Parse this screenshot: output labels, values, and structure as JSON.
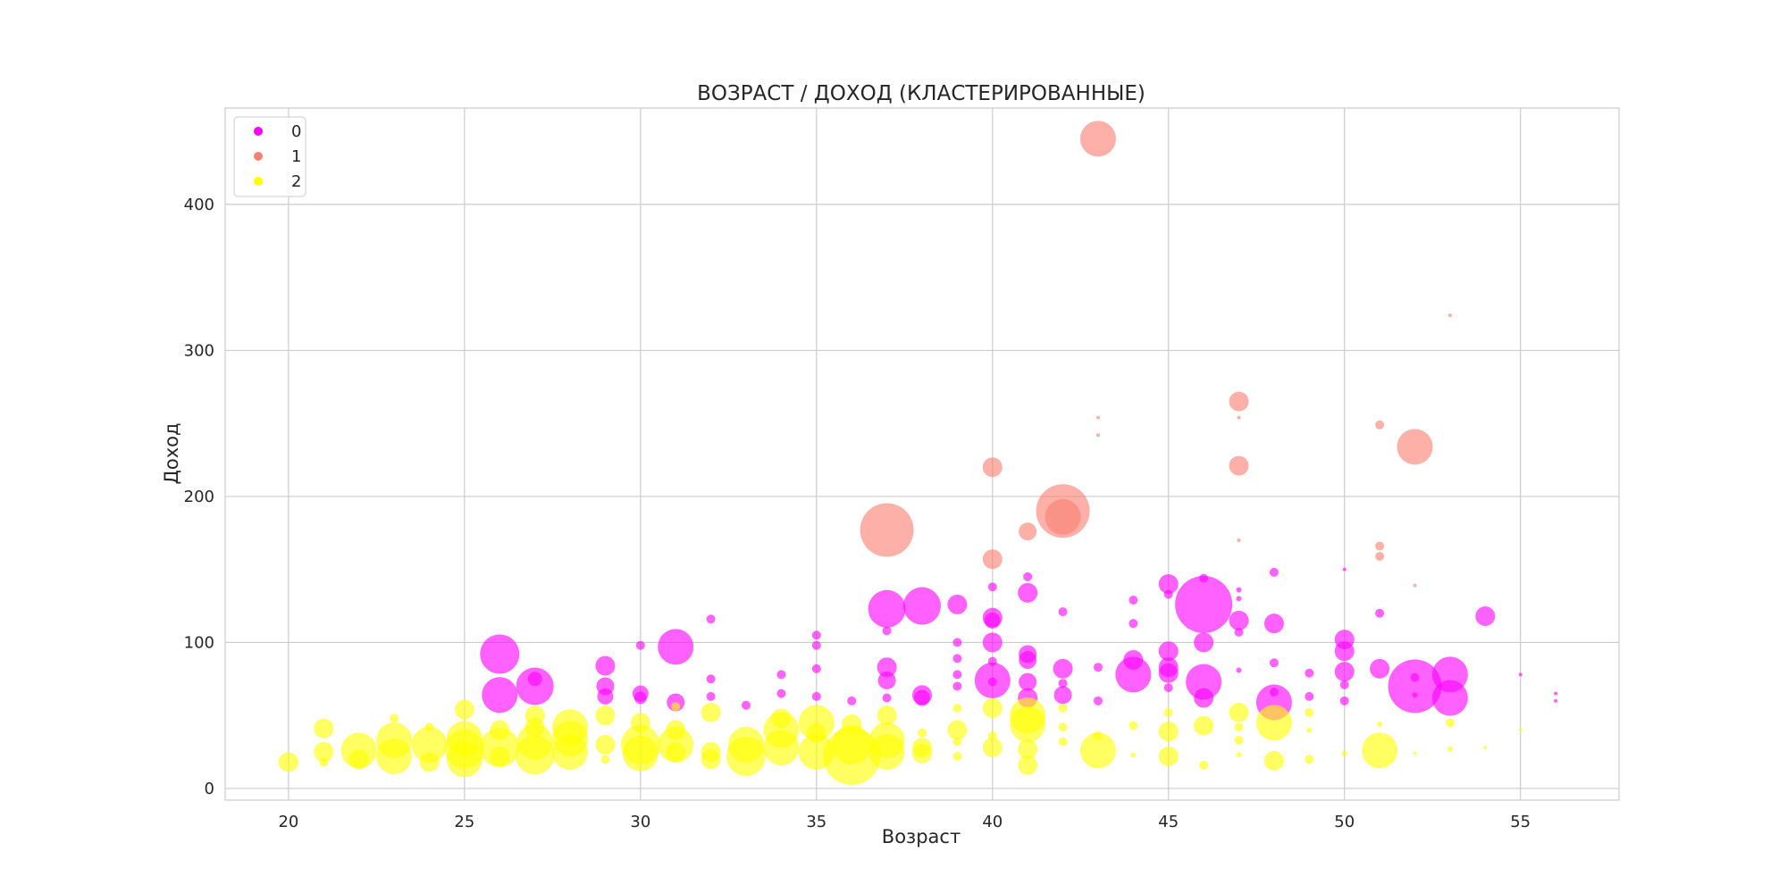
{
  "chart_data": {
    "type": "scatter",
    "title": "ВОЗРАСТ / ДОХОД (КЛАСТЕРИРОВАННЫЕ)",
    "xlabel": "Возраст",
    "ylabel": "Доход",
    "xlim": [
      18.2,
      57.8
    ],
    "ylim": [
      -8,
      466
    ],
    "xticks": [
      20,
      25,
      30,
      35,
      40,
      45,
      50,
      55
    ],
    "yticks": [
      0,
      100,
      200,
      300,
      400
    ],
    "grid": true,
    "legend_position": "top-left",
    "size_legend_note": "",
    "series": [
      {
        "name": "0",
        "color": "#ff00ff",
        "points": [
          {
            "x": 26,
            "y": 92,
            "s": 22
          },
          {
            "x": 26,
            "y": 64,
            "s": 20
          },
          {
            "x": 27,
            "y": 70,
            "s": 21
          },
          {
            "x": 27,
            "y": 75,
            "s": 8
          },
          {
            "x": 29,
            "y": 84,
            "s": 11
          },
          {
            "x": 29,
            "y": 70,
            "s": 10
          },
          {
            "x": 29,
            "y": 63,
            "s": 9
          },
          {
            "x": 30,
            "y": 98,
            "s": 5
          },
          {
            "x": 30,
            "y": 65,
            "s": 9
          },
          {
            "x": 30,
            "y": 62,
            "s": 7
          },
          {
            "x": 31,
            "y": 97,
            "s": 20
          },
          {
            "x": 31,
            "y": 59,
            "s": 10
          },
          {
            "x": 32,
            "y": 116,
            "s": 5
          },
          {
            "x": 32,
            "y": 75,
            "s": 5
          },
          {
            "x": 32,
            "y": 63,
            "s": 5
          },
          {
            "x": 33,
            "y": 57,
            "s": 5
          },
          {
            "x": 34,
            "y": 78,
            "s": 5
          },
          {
            "x": 34,
            "y": 65,
            "s": 5
          },
          {
            "x": 35,
            "y": 105,
            "s": 5
          },
          {
            "x": 35,
            "y": 98,
            "s": 5
          },
          {
            "x": 35,
            "y": 82,
            "s": 5
          },
          {
            "x": 35,
            "y": 63,
            "s": 5
          },
          {
            "x": 36,
            "y": 60,
            "s": 5
          },
          {
            "x": 37,
            "y": 123,
            "s": 21
          },
          {
            "x": 37,
            "y": 108,
            "s": 5
          },
          {
            "x": 37,
            "y": 83,
            "s": 11
          },
          {
            "x": 37,
            "y": 74,
            "s": 10
          },
          {
            "x": 37,
            "y": 62,
            "s": 5
          },
          {
            "x": 38,
            "y": 125,
            "s": 21
          },
          {
            "x": 38,
            "y": 64,
            "s": 11
          },
          {
            "x": 38,
            "y": 62,
            "s": 9
          },
          {
            "x": 39,
            "y": 126,
            "s": 11
          },
          {
            "x": 39,
            "y": 100,
            "s": 5
          },
          {
            "x": 39,
            "y": 89,
            "s": 5
          },
          {
            "x": 39,
            "y": 78,
            "s": 5
          },
          {
            "x": 39,
            "y": 70,
            "s": 5
          },
          {
            "x": 40,
            "y": 138,
            "s": 5
          },
          {
            "x": 40,
            "y": 117,
            "s": 11
          },
          {
            "x": 40,
            "y": 115,
            "s": 9
          },
          {
            "x": 40,
            "y": 100,
            "s": 11
          },
          {
            "x": 40,
            "y": 87,
            "s": 5
          },
          {
            "x": 40,
            "y": 74,
            "s": 20
          },
          {
            "x": 40,
            "y": 73,
            "s": 5
          },
          {
            "x": 41,
            "y": 145,
            "s": 5
          },
          {
            "x": 41,
            "y": 134,
            "s": 11
          },
          {
            "x": 41,
            "y": 92,
            "s": 10
          },
          {
            "x": 41,
            "y": 88,
            "s": 10
          },
          {
            "x": 41,
            "y": 73,
            "s": 10
          },
          {
            "x": 41,
            "y": 62,
            "s": 11
          },
          {
            "x": 42,
            "y": 121,
            "s": 5
          },
          {
            "x": 42,
            "y": 82,
            "s": 11
          },
          {
            "x": 42,
            "y": 72,
            "s": 5
          },
          {
            "x": 42,
            "y": 64,
            "s": 10
          },
          {
            "x": 43,
            "y": 83,
            "s": 5
          },
          {
            "x": 43,
            "y": 60,
            "s": 5
          },
          {
            "x": 44,
            "y": 129,
            "s": 5
          },
          {
            "x": 44,
            "y": 113,
            "s": 5
          },
          {
            "x": 44,
            "y": 88,
            "s": 11
          },
          {
            "x": 44,
            "y": 78,
            "s": 20
          },
          {
            "x": 45,
            "y": 140,
            "s": 11
          },
          {
            "x": 45,
            "y": 133,
            "s": 5
          },
          {
            "x": 45,
            "y": 94,
            "s": 11
          },
          {
            "x": 45,
            "y": 83,
            "s": 11
          },
          {
            "x": 45,
            "y": 79,
            "s": 11
          },
          {
            "x": 45,
            "y": 69,
            "s": 5
          },
          {
            "x": 46,
            "y": 144,
            "s": 5
          },
          {
            "x": 46,
            "y": 126,
            "s": 32
          },
          {
            "x": 46,
            "y": 100,
            "s": 11
          },
          {
            "x": 46,
            "y": 73,
            "s": 20
          },
          {
            "x": 46,
            "y": 62,
            "s": 11
          },
          {
            "x": 47,
            "y": 136,
            "s": 3
          },
          {
            "x": 47,
            "y": 130,
            "s": 3
          },
          {
            "x": 47,
            "y": 115,
            "s": 11
          },
          {
            "x": 47,
            "y": 107,
            "s": 5
          },
          {
            "x": 47,
            "y": 81,
            "s": 3
          },
          {
            "x": 48,
            "y": 148,
            "s": 5
          },
          {
            "x": 48,
            "y": 113,
            "s": 11
          },
          {
            "x": 48,
            "y": 86,
            "s": 5
          },
          {
            "x": 48,
            "y": 66,
            "s": 5
          },
          {
            "x": 48,
            "y": 59,
            "s": 20
          },
          {
            "x": 49,
            "y": 79,
            "s": 5
          },
          {
            "x": 49,
            "y": 63,
            "s": 5
          },
          {
            "x": 50,
            "y": 150,
            "s": 2
          },
          {
            "x": 50,
            "y": 102,
            "s": 11
          },
          {
            "x": 50,
            "y": 94,
            "s": 11
          },
          {
            "x": 50,
            "y": 80,
            "s": 11
          },
          {
            "x": 50,
            "y": 71,
            "s": 5
          },
          {
            "x": 50,
            "y": 60,
            "s": 5
          },
          {
            "x": 51,
            "y": 120,
            "s": 5
          },
          {
            "x": 51,
            "y": 82,
            "s": 11
          },
          {
            "x": 52,
            "y": 70,
            "s": 30
          },
          {
            "x": 52,
            "y": 76,
            "s": 5
          },
          {
            "x": 52,
            "y": 64,
            "s": 3
          },
          {
            "x": 53,
            "y": 78,
            "s": 20
          },
          {
            "x": 53,
            "y": 62,
            "s": 20
          },
          {
            "x": 54,
            "y": 118,
            "s": 11
          },
          {
            "x": 55,
            "y": 78,
            "s": 2
          },
          {
            "x": 56,
            "y": 65,
            "s": 2
          },
          {
            "x": 56,
            "y": 60,
            "s": 2
          }
        ]
      },
      {
        "name": "1",
        "color": "#fa8072",
        "points": [
          {
            "x": 37,
            "y": 177,
            "s": 30
          },
          {
            "x": 40,
            "y": 220,
            "s": 11
          },
          {
            "x": 40,
            "y": 157,
            "s": 11
          },
          {
            "x": 41,
            "y": 176,
            "s": 10
          },
          {
            "x": 42,
            "y": 190,
            "s": 30
          },
          {
            "x": 42,
            "y": 186,
            "s": 20
          },
          {
            "x": 43,
            "y": 445,
            "s": 20
          },
          {
            "x": 43,
            "y": 254,
            "s": 2
          },
          {
            "x": 43,
            "y": 242,
            "s": 2
          },
          {
            "x": 47,
            "y": 265,
            "s": 11
          },
          {
            "x": 47,
            "y": 221,
            "s": 11
          },
          {
            "x": 47,
            "y": 254,
            "s": 2
          },
          {
            "x": 47,
            "y": 170,
            "s": 2
          },
          {
            "x": 51,
            "y": 249,
            "s": 5
          },
          {
            "x": 51,
            "y": 166,
            "s": 5
          },
          {
            "x": 51,
            "y": 159,
            "s": 5
          },
          {
            "x": 52,
            "y": 234,
            "s": 20
          },
          {
            "x": 52,
            "y": 139,
            "s": 2
          },
          {
            "x": 53,
            "y": 324,
            "s": 2
          }
        ]
      },
      {
        "name": "2",
        "color": "#ffff00",
        "points": [
          {
            "x": 20,
            "y": 18,
            "s": 11
          },
          {
            "x": 21,
            "y": 41,
            "s": 11
          },
          {
            "x": 21,
            "y": 25,
            "s": 11
          },
          {
            "x": 21,
            "y": 18,
            "s": 5
          },
          {
            "x": 22,
            "y": 26,
            "s": 20
          },
          {
            "x": 22,
            "y": 20,
            "s": 11
          },
          {
            "x": 23,
            "y": 48,
            "s": 5
          },
          {
            "x": 23,
            "y": 33,
            "s": 20
          },
          {
            "x": 23,
            "y": 22,
            "s": 20
          },
          {
            "x": 24,
            "y": 42,
            "s": 5
          },
          {
            "x": 24,
            "y": 30,
            "s": 20
          },
          {
            "x": 24,
            "y": 18,
            "s": 11
          },
          {
            "x": 25,
            "y": 54,
            "s": 11
          },
          {
            "x": 25,
            "y": 34,
            "s": 20
          },
          {
            "x": 25,
            "y": 27,
            "s": 22
          },
          {
            "x": 25,
            "y": 20,
            "s": 20
          },
          {
            "x": 26,
            "y": 40,
            "s": 11
          },
          {
            "x": 26,
            "y": 28,
            "s": 22
          },
          {
            "x": 26,
            "y": 22,
            "s": 11
          },
          {
            "x": 27,
            "y": 50,
            "s": 11
          },
          {
            "x": 27,
            "y": 42,
            "s": 11
          },
          {
            "x": 27,
            "y": 32,
            "s": 20
          },
          {
            "x": 27,
            "y": 23,
            "s": 22
          },
          {
            "x": 28,
            "y": 42,
            "s": 20
          },
          {
            "x": 28,
            "y": 34,
            "s": 20
          },
          {
            "x": 28,
            "y": 25,
            "s": 20
          },
          {
            "x": 29,
            "y": 50,
            "s": 11
          },
          {
            "x": 29,
            "y": 30,
            "s": 11
          },
          {
            "x": 29,
            "y": 20,
            "s": 5
          },
          {
            "x": 30,
            "y": 45,
            "s": 11
          },
          {
            "x": 30,
            "y": 30,
            "s": 22
          },
          {
            "x": 30,
            "y": 24,
            "s": 20
          },
          {
            "x": 31,
            "y": 56,
            "s": 5
          },
          {
            "x": 31,
            "y": 40,
            "s": 11
          },
          {
            "x": 31,
            "y": 30,
            "s": 20
          },
          {
            "x": 31,
            "y": 25,
            "s": 11
          },
          {
            "x": 32,
            "y": 52,
            "s": 11
          },
          {
            "x": 32,
            "y": 25,
            "s": 11
          },
          {
            "x": 32,
            "y": 20,
            "s": 11
          },
          {
            "x": 33,
            "y": 30,
            "s": 20
          },
          {
            "x": 33,
            "y": 22,
            "s": 22
          },
          {
            "x": 34,
            "y": 48,
            "s": 11
          },
          {
            "x": 34,
            "y": 40,
            "s": 20
          },
          {
            "x": 34,
            "y": 28,
            "s": 20
          },
          {
            "x": 35,
            "y": 45,
            "s": 20
          },
          {
            "x": 35,
            "y": 38,
            "s": 11
          },
          {
            "x": 35,
            "y": 25,
            "s": 20
          },
          {
            "x": 36,
            "y": 44,
            "s": 11
          },
          {
            "x": 36,
            "y": 30,
            "s": 22
          },
          {
            "x": 36,
            "y": 22,
            "s": 32
          },
          {
            "x": 37,
            "y": 50,
            "s": 11
          },
          {
            "x": 37,
            "y": 33,
            "s": 20
          },
          {
            "x": 37,
            "y": 25,
            "s": 20
          },
          {
            "x": 38,
            "y": 38,
            "s": 5
          },
          {
            "x": 38,
            "y": 28,
            "s": 11
          },
          {
            "x": 38,
            "y": 24,
            "s": 11
          },
          {
            "x": 39,
            "y": 55,
            "s": 5
          },
          {
            "x": 39,
            "y": 40,
            "s": 11
          },
          {
            "x": 39,
            "y": 32,
            "s": 5
          },
          {
            "x": 39,
            "y": 22,
            "s": 5
          },
          {
            "x": 40,
            "y": 55,
            "s": 11
          },
          {
            "x": 40,
            "y": 36,
            "s": 5
          },
          {
            "x": 40,
            "y": 28,
            "s": 11
          },
          {
            "x": 41,
            "y": 50,
            "s": 20
          },
          {
            "x": 41,
            "y": 44,
            "s": 20
          },
          {
            "x": 41,
            "y": 27,
            "s": 11
          },
          {
            "x": 41,
            "y": 16,
            "s": 11
          },
          {
            "x": 42,
            "y": 55,
            "s": 5
          },
          {
            "x": 42,
            "y": 42,
            "s": 5
          },
          {
            "x": 42,
            "y": 32,
            "s": 5
          },
          {
            "x": 43,
            "y": 36,
            "s": 5
          },
          {
            "x": 43,
            "y": 26,
            "s": 20
          },
          {
            "x": 44,
            "y": 43,
            "s": 5
          },
          {
            "x": 44,
            "y": 23,
            "s": 3
          },
          {
            "x": 45,
            "y": 52,
            "s": 5
          },
          {
            "x": 45,
            "y": 39,
            "s": 11
          },
          {
            "x": 45,
            "y": 22,
            "s": 11
          },
          {
            "x": 46,
            "y": 43,
            "s": 11
          },
          {
            "x": 46,
            "y": 16,
            "s": 5
          },
          {
            "x": 47,
            "y": 52,
            "s": 11
          },
          {
            "x": 47,
            "y": 42,
            "s": 5
          },
          {
            "x": 47,
            "y": 33,
            "s": 5
          },
          {
            "x": 47,
            "y": 23,
            "s": 3
          },
          {
            "x": 48,
            "y": 45,
            "s": 20
          },
          {
            "x": 48,
            "y": 19,
            "s": 11
          },
          {
            "x": 49,
            "y": 52,
            "s": 5
          },
          {
            "x": 49,
            "y": 40,
            "s": 3
          },
          {
            "x": 49,
            "y": 20,
            "s": 5
          },
          {
            "x": 50,
            "y": 24,
            "s": 3
          },
          {
            "x": 51,
            "y": 44,
            "s": 3
          },
          {
            "x": 51,
            "y": 26,
            "s": 20
          },
          {
            "x": 52,
            "y": 24,
            "s": 2
          },
          {
            "x": 53,
            "y": 45,
            "s": 5
          },
          {
            "x": 53,
            "y": 27,
            "s": 3
          },
          {
            "x": 54,
            "y": 28,
            "s": 2
          },
          {
            "x": 55,
            "y": 40,
            "s": 2
          }
        ]
      }
    ]
  }
}
